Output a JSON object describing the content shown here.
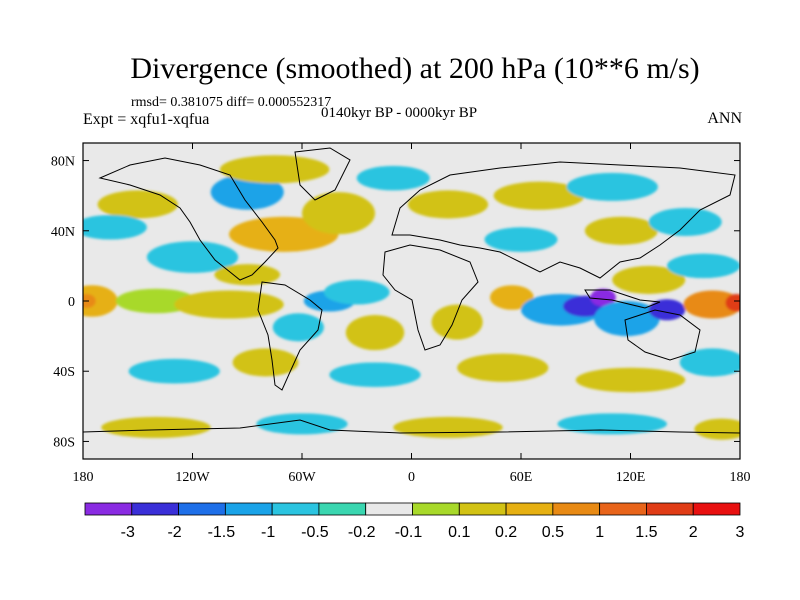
{
  "chart_data": {
    "type": "heatmap",
    "title": "Divergence (smoothed) at 200 hPa (10**6 m/s)",
    "stats_text": "rmsd= 0.381075 diff= 0.000552317",
    "expt_text": "Expt = xqfu1-xqfua",
    "period_text": "0140kyr BP - 0000kyr BP",
    "season_text": "ANN",
    "x_range": [
      -180,
      180
    ],
    "y_range": [
      -90,
      90
    ],
    "x_ticks": [
      {
        "value": -180,
        "label": "180"
      },
      {
        "value": -120,
        "label": "120W"
      },
      {
        "value": -60,
        "label": "60W"
      },
      {
        "value": 0,
        "label": "0"
      },
      {
        "value": 60,
        "label": "60E"
      },
      {
        "value": 120,
        "label": "120E"
      },
      {
        "value": 180,
        "label": "180"
      }
    ],
    "y_ticks": [
      {
        "value": 80,
        "label": "80N"
      },
      {
        "value": 40,
        "label": "40N"
      },
      {
        "value": 0,
        "label": "0"
      },
      {
        "value": -40,
        "label": "40S"
      },
      {
        "value": -80,
        "label": "80S"
      }
    ],
    "colorbar": {
      "colors": [
        "#8a2be2",
        "#3a2fd8",
        "#1e6fe8",
        "#1aa3e8",
        "#2bc4e0",
        "#3ad6b0",
        "#e9e9e9",
        "#a8d92a",
        "#d2c214",
        "#e6b012",
        "#e88a14",
        "#e8641a",
        "#e03c16",
        "#e81010"
      ],
      "labels": [
        "-3",
        "-2",
        "-1.5",
        "-1",
        "-0.5",
        "-0.2",
        "-0.1",
        "0.1",
        "0.2",
        "0.5",
        "1",
        "1.5",
        "2",
        "3"
      ]
    },
    "field_blobs": [
      {
        "lon": -175,
        "lat": 0,
        "rx": 14,
        "ry": 9,
        "level": 3
      },
      {
        "lon": -178,
        "lat": 0,
        "rx": 5,
        "ry": 4,
        "level": 4
      },
      {
        "lon": -140,
        "lat": 0,
        "rx": 22,
        "ry": 7,
        "level": 1
      },
      {
        "lon": -100,
        "lat": -2,
        "rx": 30,
        "ry": 8,
        "level": 2
      },
      {
        "lon": -45,
        "lat": 0,
        "rx": 14,
        "ry": 6,
        "level": -3
      },
      {
        "lon": -30,
        "lat": 5,
        "rx": 18,
        "ry": 7,
        "level": -2
      },
      {
        "lon": -62,
        "lat": -15,
        "rx": 14,
        "ry": 8,
        "level": -2
      },
      {
        "lon": -20,
        "lat": -18,
        "rx": 16,
        "ry": 10,
        "level": 2
      },
      {
        "lon": 25,
        "lat": -12,
        "rx": 14,
        "ry": 10,
        "level": 2
      },
      {
        "lon": 55,
        "lat": 2,
        "rx": 12,
        "ry": 7,
        "level": 3
      },
      {
        "lon": 82,
        "lat": -5,
        "rx": 22,
        "ry": 9,
        "level": -3
      },
      {
        "lon": 95,
        "lat": -3,
        "rx": 12,
        "ry": 6,
        "level": -5
      },
      {
        "lon": 105,
        "lat": 2,
        "rx": 7,
        "ry": 5,
        "level": -6
      },
      {
        "lon": 118,
        "lat": -10,
        "rx": 18,
        "ry": 10,
        "level": -3
      },
      {
        "lon": 140,
        "lat": -5,
        "rx": 10,
        "ry": 6,
        "level": -5
      },
      {
        "lon": 130,
        "lat": 12,
        "rx": 20,
        "ry": 8,
        "level": 2
      },
      {
        "lon": 165,
        "lat": -2,
        "rx": 16,
        "ry": 8,
        "level": 4
      },
      {
        "lon": 178,
        "lat": -1,
        "rx": 6,
        "ry": 5,
        "level": 6
      },
      {
        "lon": 160,
        "lat": 20,
        "rx": 20,
        "ry": 7,
        "level": -2
      },
      {
        "lon": -120,
        "lat": 25,
        "rx": 25,
        "ry": 9,
        "level": -2
      },
      {
        "lon": -90,
        "lat": 15,
        "rx": 18,
        "ry": 6,
        "level": 2
      },
      {
        "lon": -70,
        "lat": 38,
        "rx": 30,
        "ry": 10,
        "level": 3
      },
      {
        "lon": -40,
        "lat": 50,
        "rx": 20,
        "ry": 12,
        "level": 2
      },
      {
        "lon": -90,
        "lat": 62,
        "rx": 20,
        "ry": 10,
        "level": -3
      },
      {
        "lon": -75,
        "lat": 75,
        "rx": 30,
        "ry": 8,
        "level": 2
      },
      {
        "lon": -150,
        "lat": 55,
        "rx": 22,
        "ry": 8,
        "level": 2
      },
      {
        "lon": -165,
        "lat": 42,
        "rx": 20,
        "ry": 7,
        "level": -2
      },
      {
        "lon": -10,
        "lat": 70,
        "rx": 20,
        "ry": 7,
        "level": -2
      },
      {
        "lon": 20,
        "lat": 55,
        "rx": 22,
        "ry": 8,
        "level": 2
      },
      {
        "lon": 60,
        "lat": 35,
        "rx": 20,
        "ry": 7,
        "level": -2
      },
      {
        "lon": 70,
        "lat": 60,
        "rx": 25,
        "ry": 8,
        "level": 2
      },
      {
        "lon": 110,
        "lat": 65,
        "rx": 25,
        "ry": 8,
        "level": -2
      },
      {
        "lon": 115,
        "lat": 40,
        "rx": 20,
        "ry": 8,
        "level": 2
      },
      {
        "lon": 150,
        "lat": 45,
        "rx": 20,
        "ry": 8,
        "level": -2
      },
      {
        "lon": -130,
        "lat": -40,
        "rx": 25,
        "ry": 7,
        "level": -2
      },
      {
        "lon": -80,
        "lat": -35,
        "rx": 18,
        "ry": 8,
        "level": 2
      },
      {
        "lon": -20,
        "lat": -42,
        "rx": 25,
        "ry": 7,
        "level": -2
      },
      {
        "lon": 50,
        "lat": -38,
        "rx": 25,
        "ry": 8,
        "level": 2
      },
      {
        "lon": 120,
        "lat": -45,
        "rx": 30,
        "ry": 7,
        "level": 2
      },
      {
        "lon": 165,
        "lat": -35,
        "rx": 18,
        "ry": 8,
        "level": -2
      },
      {
        "lon": -140,
        "lat": -72,
        "rx": 30,
        "ry": 6,
        "level": 2
      },
      {
        "lon": -60,
        "lat": -70,
        "rx": 25,
        "ry": 6,
        "level": -2
      },
      {
        "lon": 20,
        "lat": -72,
        "rx": 30,
        "ry": 6,
        "level": 2
      },
      {
        "lon": 110,
        "lat": -70,
        "rx": 30,
        "ry": 6,
        "level": -2
      },
      {
        "lon": 170,
        "lat": -73,
        "rx": 15,
        "ry": 6,
        "level": 2
      }
    ]
  }
}
